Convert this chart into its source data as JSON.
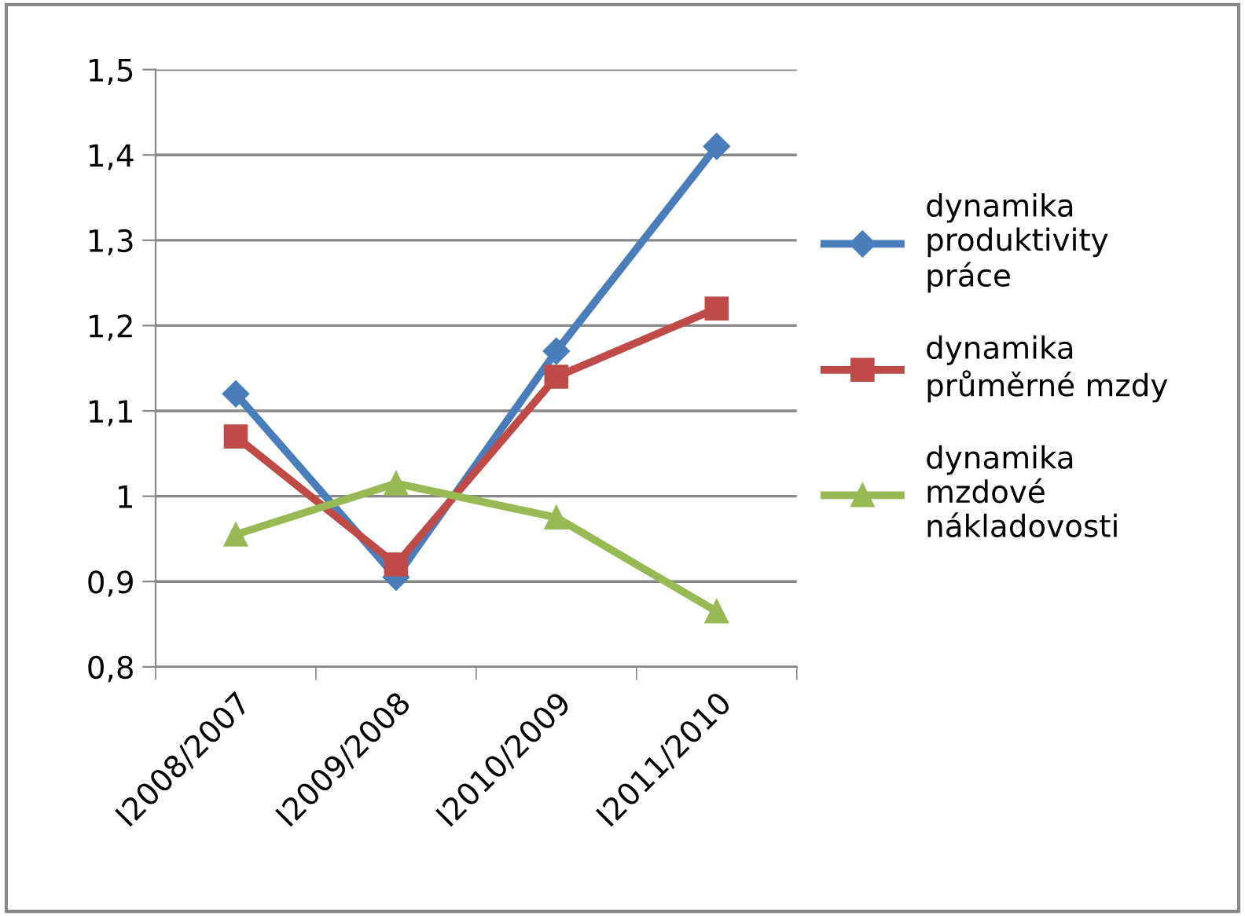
{
  "chart_data": {
    "type": "line",
    "categories": [
      "I2008/2007",
      "I2009/2008",
      "I2010/2009",
      "I2011/2010"
    ],
    "series": [
      {
        "name": "dynamika\nproduktivity\npráce",
        "color": "#4a7ebb",
        "marker": "diamond",
        "values": [
          1.12,
          0.905,
          1.17,
          1.41
        ]
      },
      {
        "name": "dynamika\nprůměrné mzdy",
        "color": "#be4b48",
        "marker": "square",
        "values": [
          1.07,
          0.92,
          1.14,
          1.22
        ]
      },
      {
        "name": "dynamika\nmzdové\nnákladovosti",
        "color": "#98b954",
        "marker": "triangle",
        "values": [
          0.955,
          1.015,
          0.975,
          0.865
        ]
      }
    ],
    "ylim": [
      0.8,
      1.5
    ],
    "yticks": [
      {
        "value": 0.8,
        "label": "0,8"
      },
      {
        "value": 0.9,
        "label": "0,9"
      },
      1,
      {
        "value": 1.1,
        "label": "1,1"
      },
      {
        "value": 1.2,
        "label": "1,2"
      },
      {
        "value": 1.3,
        "label": "1,3"
      },
      {
        "value": 1.4,
        "label": "1,4"
      },
      {
        "value": 1.5,
        "label": "1,5"
      }
    ],
    "grid": "y",
    "legend": "right",
    "line_style": "solid"
  }
}
